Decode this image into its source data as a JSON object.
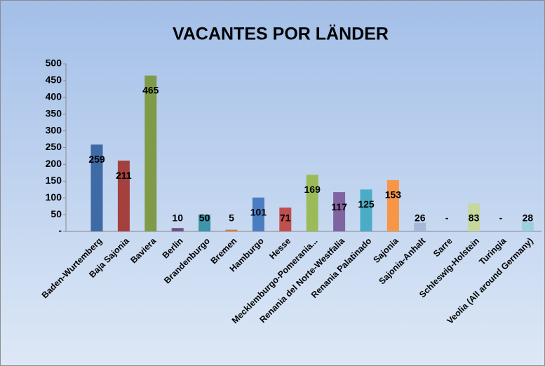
{
  "chart_data": {
    "type": "bar",
    "title": "VACANTES POR LÄNDER",
    "categories": [
      "Baden-Wurtemberg",
      "Baja Sajonia",
      "Baviera",
      "Berlin",
      "Brandenburgo",
      "Bremen",
      "Hamburgo",
      "Hesse",
      "Mecklemburgo-Pomerania...",
      "Renania del Norte-Westfalia",
      "Renania Palatinado",
      "Sajonia",
      "Sajonia-Anhalt",
      "Sarre",
      "Schleswig-Holstein",
      "Turingia",
      "Veolia (All around Germany)"
    ],
    "values": [
      259,
      211,
      465,
      10,
      50,
      5,
      101,
      71,
      169,
      117,
      125,
      153,
      26,
      0,
      83,
      0,
      28
    ],
    "value_labels": [
      "259",
      "211",
      "465",
      "10",
      "50",
      "5",
      "101",
      "71",
      "169",
      "117",
      "125",
      "153",
      "26",
      "-",
      "83",
      "-",
      "28"
    ],
    "colors": [
      "#3e6aa5",
      "#a4403d",
      "#7f9b47",
      "#6b5388",
      "#3c95a9",
      "#cf7f3e",
      "#4a7cc1",
      "#c0504d",
      "#9bbb59",
      "#8064a2",
      "#4bacc6",
      "#f79646",
      "#a5b8d8",
      "#c9b0c9",
      "#c5d89e",
      "#b7a6cc",
      "#9dd0de"
    ],
    "ylim": [
      0,
      500
    ],
    "yticks": [
      {
        "value": 0,
        "label": "-"
      },
      50,
      100,
      150,
      200,
      250,
      300,
      350,
      400,
      450,
      500
    ]
  }
}
